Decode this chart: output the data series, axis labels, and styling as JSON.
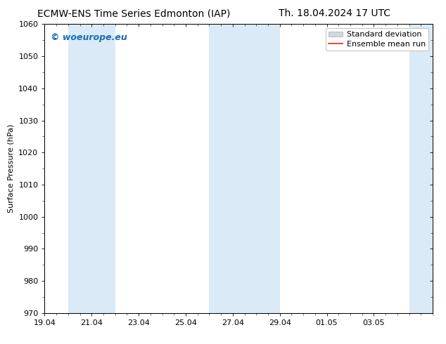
{
  "title_left": "ECMW-ENS Time Series Edmonton (IAP)",
  "title_right": "Th. 18.04.2024 17 UTC",
  "ylabel": "Surface Pressure (hPa)",
  "ylim": [
    970,
    1060
  ],
  "yticks": [
    970,
    980,
    990,
    1000,
    1010,
    1020,
    1030,
    1040,
    1050,
    1060
  ],
  "xtick_labels": [
    "19.04",
    "21.04",
    "23.04",
    "25.04",
    "27.04",
    "29.04",
    "01.05",
    "03.05"
  ],
  "xtick_positions": [
    0,
    2,
    4,
    6,
    8,
    10,
    12,
    14
  ],
  "x_min": 0,
  "x_max": 16.5,
  "shaded_bands": [
    {
      "x_start": 1.0,
      "x_end": 3.0
    },
    {
      "x_start": 7.0,
      "x_end": 9.0
    },
    {
      "x_start": 8.0,
      "x_end": 10.0
    },
    {
      "x_start": 15.5,
      "x_end": 16.5
    }
  ],
  "band_color": "#daeaf7",
  "background_color": "#ffffff",
  "watermark_text": "© woeurope.eu",
  "watermark_color": "#1a6bb5",
  "legend_std_dev_color": "#d0d8e0",
  "legend_mean_run_color": "#ff2200",
  "title_fontsize": 10,
  "axis_label_fontsize": 8,
  "tick_fontsize": 8,
  "watermark_fontsize": 9,
  "legend_fontsize": 8
}
